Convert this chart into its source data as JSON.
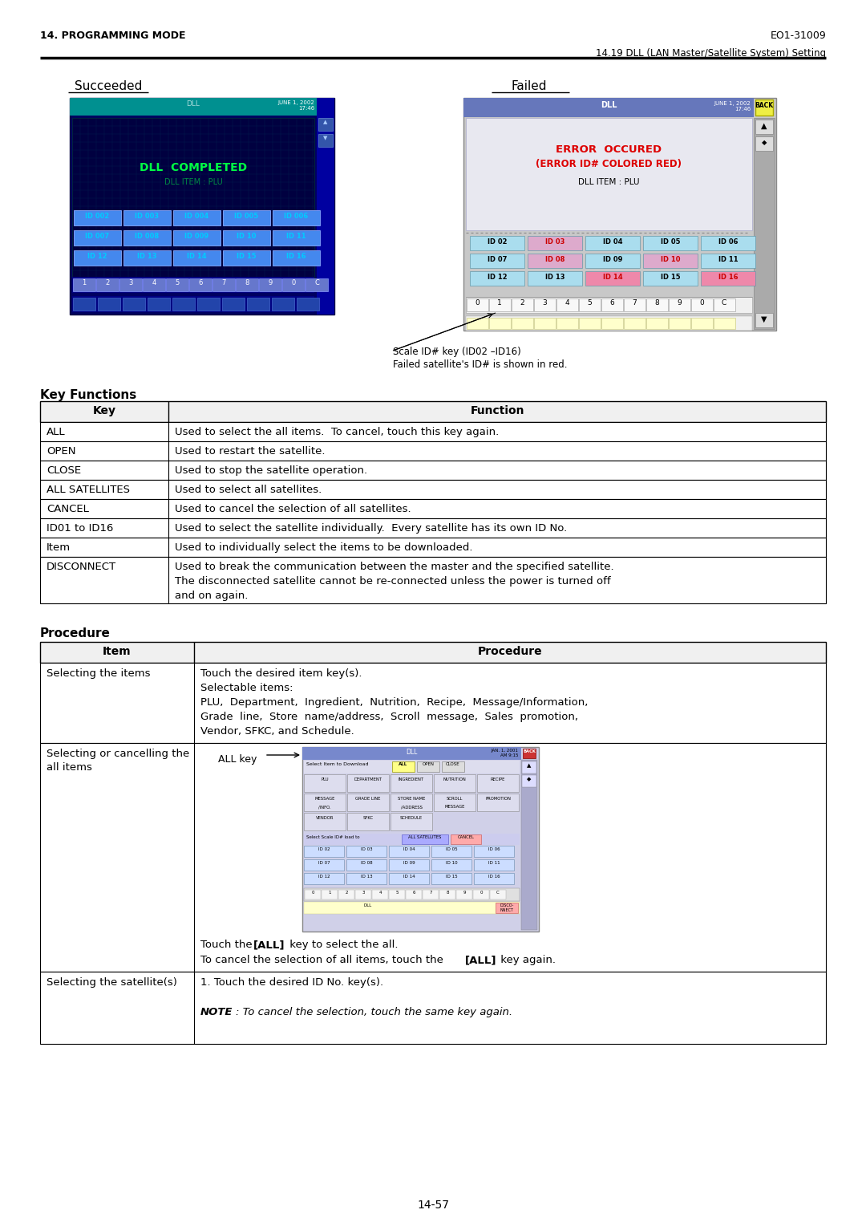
{
  "page_header_left": "14. PROGRAMMING MODE",
  "page_header_right": "EO1-31009",
  "section_title": "14.19 DLL (LAN Master/Satellite System) Setting",
  "succeeded_label": "Succeeded",
  "failed_label": "Failed",
  "scale_note_line1": "Scale ID# key (ID02 –ID16)",
  "scale_note_line2": "Failed satellite's ID# is shown in red.",
  "key_functions_title": "Key Functions",
  "key_table_header": [
    "Key",
    "Function"
  ],
  "key_table_rows": [
    [
      "ALL",
      "Used to select the all items.  To cancel, touch this key again."
    ],
    [
      "OPEN",
      "Used to restart the satellite."
    ],
    [
      "CLOSE",
      "Used to stop the satellite operation."
    ],
    [
      "ALL SATELLITES",
      "Used to select all satellites."
    ],
    [
      "CANCEL",
      "Used to cancel the selection of all satellites."
    ],
    [
      "ID01 to ID16",
      "Used to select the satellite individually.  Every satellite has its own ID No."
    ],
    [
      "Item",
      "Used to individually select the items to be downloaded."
    ],
    [
      "DISCONNECT",
      "Used to break the communication between the master and the specified satellite.\nThe disconnected satellite cannot be re-connected unless the power is turned off\nand on again."
    ]
  ],
  "procedure_title": "Procedure",
  "proc_table_header": [
    "Item",
    "Procedure"
  ],
  "page_number": "14-57",
  "bg_color": "#ffffff"
}
